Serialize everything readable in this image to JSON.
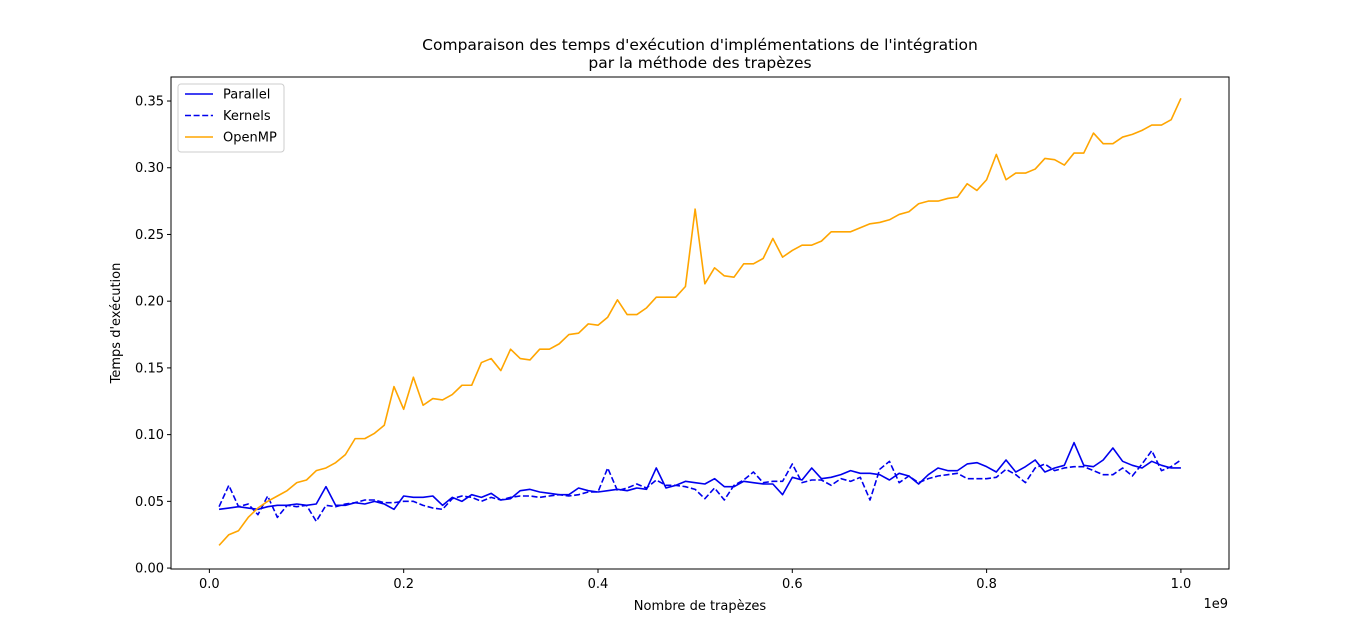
{
  "chart_data": {
    "type": "line",
    "title": [
      "Comparaison des temps d'exécution d'implémentations de l'intégration",
      "par la méthode des trapèzes"
    ],
    "xlabel": "Nombre de trapèzes",
    "ylabel": "Temps d'exécution",
    "x_offset_label": "1e9",
    "xlim": [
      -0.0395,
      1.0495
    ],
    "ylim": [
      -0.0007,
      0.368
    ],
    "xticks": [
      0.0,
      0.2,
      0.4,
      0.6,
      0.8,
      1.0
    ],
    "xtick_labels": [
      "0.0",
      "0.2",
      "0.4",
      "0.6",
      "0.8",
      "1.0"
    ],
    "yticks": [
      0.0,
      0.05,
      0.1,
      0.15,
      0.2,
      0.25,
      0.3,
      0.35
    ],
    "ytick_labels": [
      "0.00",
      "0.05",
      "0.10",
      "0.15",
      "0.20",
      "0.25",
      "0.30",
      "0.35"
    ],
    "grid": false,
    "legend_position": "top-left",
    "x": [
      0.01,
      0.02,
      0.03,
      0.04,
      0.05,
      0.06,
      0.07,
      0.08,
      0.09,
      0.1,
      0.11,
      0.12,
      0.13,
      0.14,
      0.15,
      0.16,
      0.17,
      0.18,
      0.19,
      0.2,
      0.21,
      0.22,
      0.23,
      0.24,
      0.25,
      0.26,
      0.27,
      0.28,
      0.29,
      0.3,
      0.31,
      0.32,
      0.33,
      0.34,
      0.35,
      0.36,
      0.37,
      0.38,
      0.39,
      0.4,
      0.41,
      0.42,
      0.43,
      0.44,
      0.45,
      0.46,
      0.47,
      0.48,
      0.49,
      0.5,
      0.51,
      0.52,
      0.53,
      0.54,
      0.55,
      0.56,
      0.57,
      0.58,
      0.59,
      0.6,
      0.61,
      0.62,
      0.63,
      0.64,
      0.65,
      0.66,
      0.67,
      0.68,
      0.69,
      0.7,
      0.71,
      0.72,
      0.73,
      0.74,
      0.75,
      0.76,
      0.77,
      0.78,
      0.79,
      0.8,
      0.81,
      0.82,
      0.83,
      0.84,
      0.85,
      0.86,
      0.87,
      0.88,
      0.89,
      0.9,
      0.91,
      0.92,
      0.93,
      0.94,
      0.95,
      0.96,
      0.97,
      0.98,
      0.99,
      1.0
    ],
    "series": [
      {
        "name": "Parallel",
        "color": "#0000ee",
        "dash": "solid",
        "values": [
          0.044,
          0.045,
          0.046,
          0.045,
          0.044,
          0.046,
          0.047,
          0.047,
          0.048,
          0.047,
          0.048,
          0.061,
          0.047,
          0.047,
          0.049,
          0.048,
          0.05,
          0.048,
          0.044,
          0.054,
          0.053,
          0.053,
          0.054,
          0.047,
          0.053,
          0.05,
          0.055,
          0.053,
          0.056,
          0.051,
          0.052,
          0.058,
          0.059,
          0.057,
          0.056,
          0.055,
          0.055,
          0.06,
          0.058,
          0.057,
          0.058,
          0.059,
          0.058,
          0.06,
          0.059,
          0.075,
          0.06,
          0.062,
          0.065,
          0.064,
          0.063,
          0.067,
          0.061,
          0.061,
          0.065,
          0.064,
          0.063,
          0.063,
          0.055,
          0.068,
          0.066,
          0.075,
          0.067,
          0.068,
          0.07,
          0.073,
          0.071,
          0.071,
          0.07,
          0.066,
          0.071,
          0.069,
          0.063,
          0.07,
          0.075,
          0.073,
          0.073,
          0.078,
          0.079,
          0.076,
          0.072,
          0.081,
          0.072,
          0.076,
          0.081,
          0.072,
          0.075,
          0.077,
          0.094,
          0.077,
          0.076,
          0.081,
          0.09,
          0.08,
          0.077,
          0.075,
          0.08,
          0.077,
          0.075,
          0.075
        ]
      },
      {
        "name": "Kernels",
        "color": "#0000ee",
        "dash": "dashed",
        "values": [
          0.046,
          0.062,
          0.046,
          0.048,
          0.04,
          0.054,
          0.038,
          0.047,
          0.046,
          0.047,
          0.035,
          0.047,
          0.046,
          0.048,
          0.049,
          0.051,
          0.051,
          0.049,
          0.049,
          0.05,
          0.05,
          0.047,
          0.045,
          0.044,
          0.052,
          0.054,
          0.053,
          0.05,
          0.053,
          0.051,
          0.053,
          0.054,
          0.054,
          0.053,
          0.054,
          0.055,
          0.054,
          0.055,
          0.057,
          0.057,
          0.075,
          0.058,
          0.06,
          0.063,
          0.06,
          0.066,
          0.062,
          0.062,
          0.061,
          0.059,
          0.052,
          0.06,
          0.051,
          0.062,
          0.066,
          0.072,
          0.064,
          0.065,
          0.065,
          0.078,
          0.064,
          0.066,
          0.066,
          0.062,
          0.067,
          0.065,
          0.068,
          0.051,
          0.074,
          0.08,
          0.064,
          0.069,
          0.064,
          0.067,
          0.069,
          0.07,
          0.071,
          0.067,
          0.067,
          0.067,
          0.068,
          0.074,
          0.07,
          0.064,
          0.075,
          0.078,
          0.073,
          0.075,
          0.076,
          0.076,
          0.073,
          0.07,
          0.07,
          0.075,
          0.069,
          0.078,
          0.088,
          0.073,
          0.076,
          0.081
        ]
      },
      {
        "name": "OpenMP",
        "color": "#ffa500",
        "dash": "solid",
        "values": [
          0.017,
          0.025,
          0.028,
          0.038,
          0.045,
          0.05,
          0.054,
          0.058,
          0.064,
          0.066,
          0.073,
          0.075,
          0.079,
          0.085,
          0.097,
          0.097,
          0.101,
          0.107,
          0.136,
          0.119,
          0.143,
          0.122,
          0.127,
          0.126,
          0.13,
          0.137,
          0.137,
          0.154,
          0.157,
          0.148,
          0.164,
          0.157,
          0.156,
          0.164,
          0.164,
          0.168,
          0.175,
          0.176,
          0.183,
          0.182,
          0.188,
          0.201,
          0.19,
          0.19,
          0.195,
          0.203,
          0.203,
          0.203,
          0.211,
          0.269,
          0.213,
          0.225,
          0.219,
          0.218,
          0.228,
          0.228,
          0.232,
          0.247,
          0.233,
          0.238,
          0.242,
          0.242,
          0.245,
          0.252,
          0.252,
          0.252,
          0.255,
          0.258,
          0.259,
          0.261,
          0.265,
          0.267,
          0.273,
          0.275,
          0.275,
          0.277,
          0.278,
          0.288,
          0.283,
          0.291,
          0.31,
          0.291,
          0.296,
          0.296,
          0.299,
          0.307,
          0.306,
          0.302,
          0.311,
          0.311,
          0.326,
          0.318,
          0.318,
          0.323,
          0.325,
          0.328,
          0.332,
          0.332,
          0.336,
          0.352
        ]
      }
    ]
  }
}
